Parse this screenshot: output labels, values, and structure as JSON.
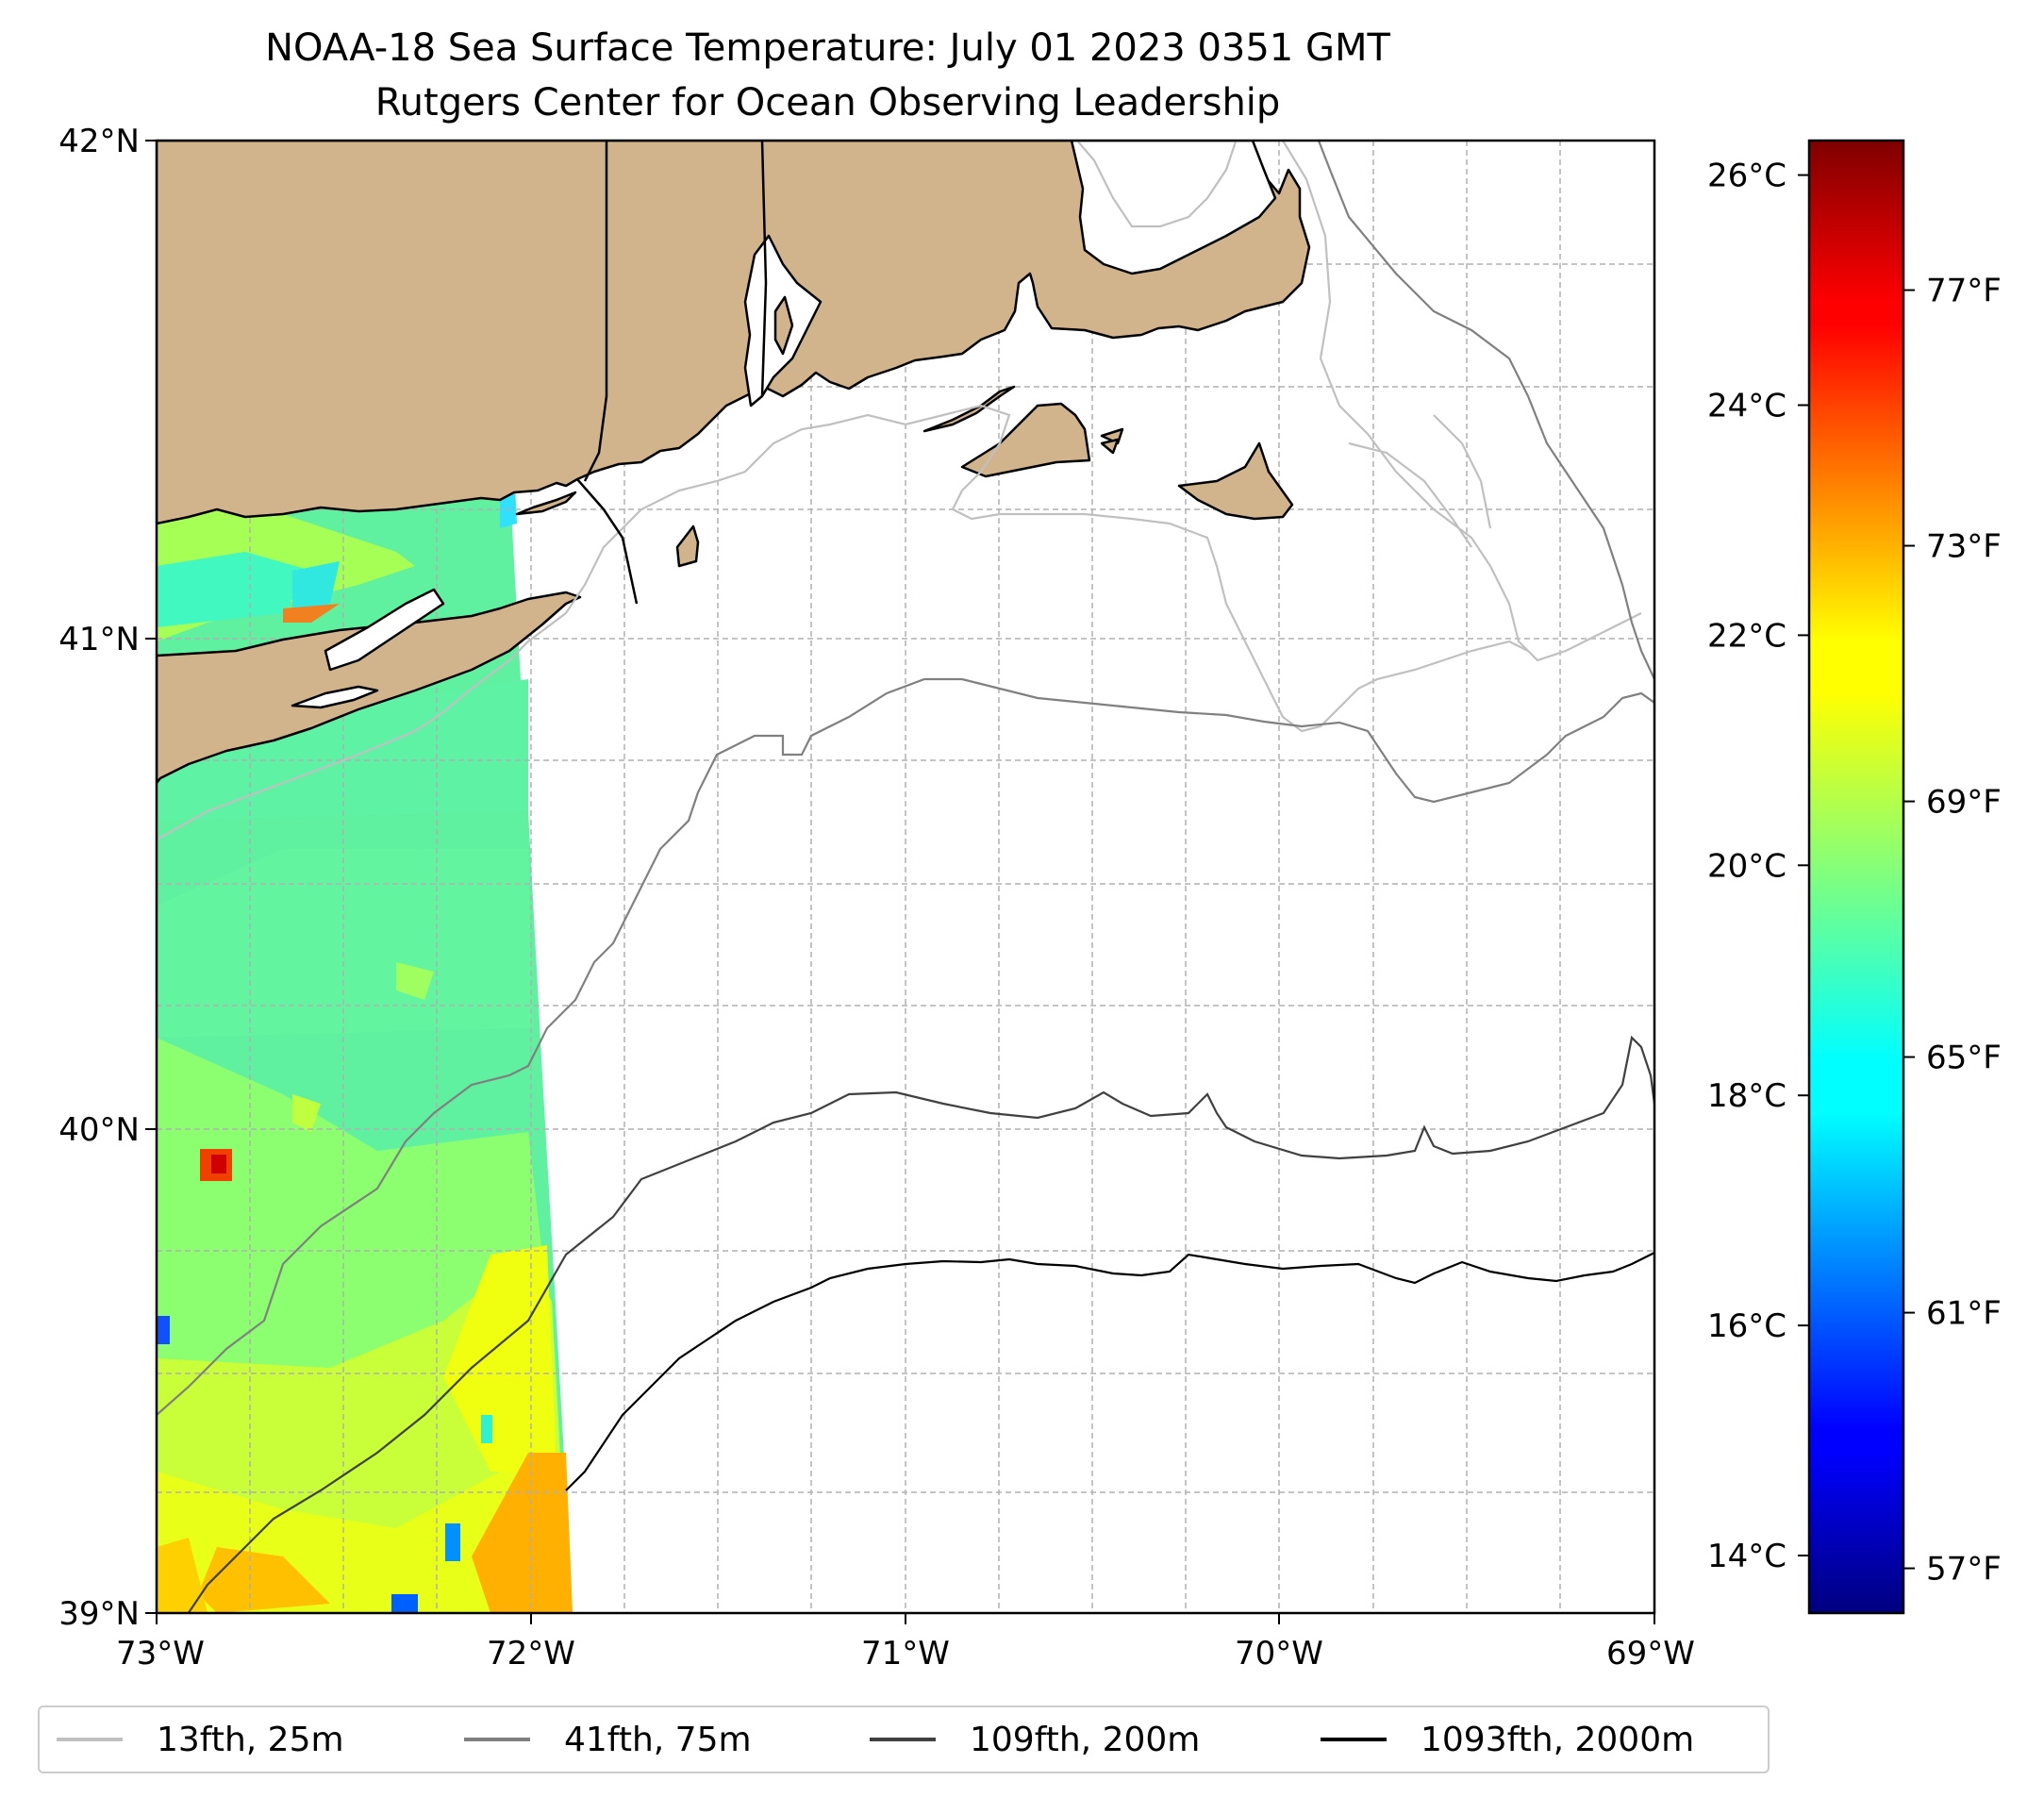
{
  "title": {
    "line1": "NOAA-18 Sea Surface Temperature: July 01 2023 0351 GMT",
    "line2": "Rutgers Center for Ocean Observing Leadership"
  },
  "map": {
    "extent": {
      "lon": [
        -73,
        -69
      ],
      "lat": [
        39,
        42
      ]
    },
    "lat_ticks": [
      {
        "value": 42,
        "label": "42°N"
      },
      {
        "value": 41,
        "label": "41°N"
      },
      {
        "value": 40,
        "label": "40°N"
      },
      {
        "value": 39,
        "label": "39°N"
      }
    ],
    "lon_ticks": [
      {
        "value": -73,
        "label": "73°W"
      },
      {
        "value": -72,
        "label": "72°W"
      },
      {
        "value": -71,
        "label": "71°W"
      },
      {
        "value": -70,
        "label": "70°W"
      },
      {
        "value": -69,
        "label": "69°W"
      }
    ],
    "land_color": "#d2b48c",
    "grid": "dashed"
  },
  "colorbar": {
    "min_c": 13.5,
    "max_c": 26.3,
    "colormap": "jet",
    "celsius_ticks": [
      {
        "value": 26,
        "label": "26°C"
      },
      {
        "value": 24,
        "label": "24°C"
      },
      {
        "value": 22,
        "label": "22°C"
      },
      {
        "value": 20,
        "label": "20°C"
      },
      {
        "value": 18,
        "label": "18°C"
      },
      {
        "value": 16,
        "label": "16°C"
      },
      {
        "value": 14,
        "label": "14°C"
      }
    ],
    "fahrenheit_ticks": [
      {
        "value": 77,
        "label": "77°F"
      },
      {
        "value": 73,
        "label": "73°F"
      },
      {
        "value": 69,
        "label": "69°F"
      },
      {
        "value": 65,
        "label": "65°F"
      },
      {
        "value": 61,
        "label": "61°F"
      },
      {
        "value": 57,
        "label": "57°F"
      }
    ]
  },
  "legend": [
    {
      "label": "13fth, 25m",
      "color": "#c0c0c0"
    },
    {
      "label": "41fth, 75m",
      "color": "#808080"
    },
    {
      "label": "109fth, 200m",
      "color": "#404040"
    },
    {
      "label": "1093fth, 2000m",
      "color": "#000000"
    }
  ]
}
